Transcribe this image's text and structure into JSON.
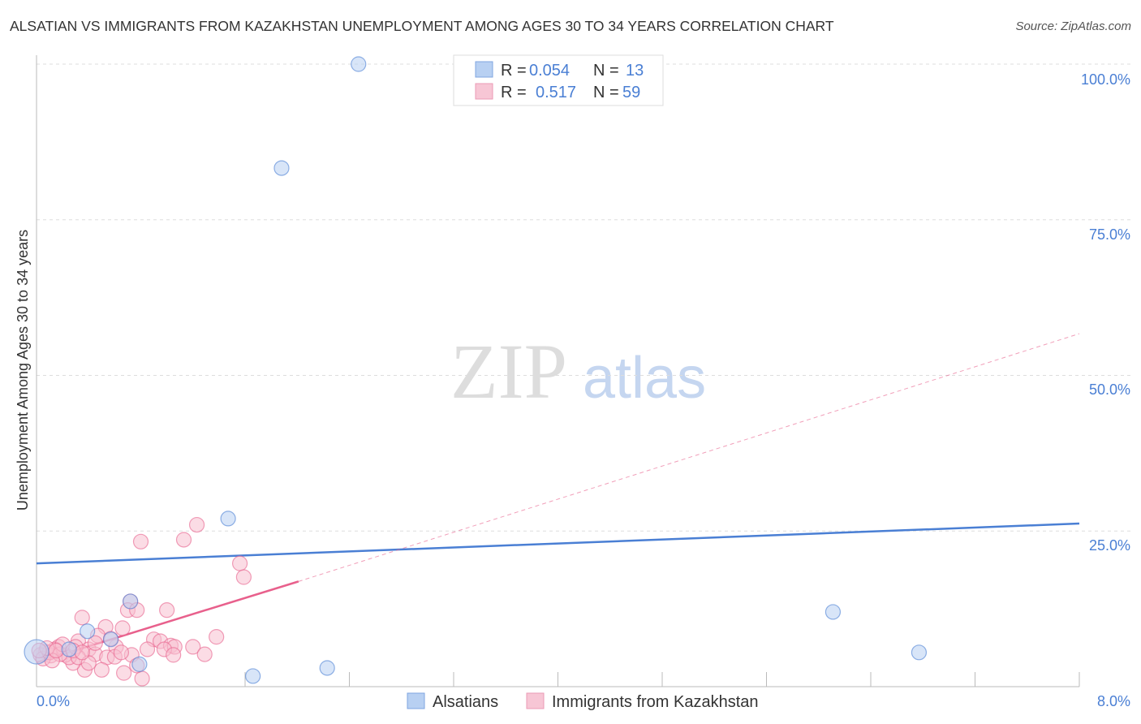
{
  "title": "ALSATIAN VS IMMIGRANTS FROM KAZAKHSTAN UNEMPLOYMENT AMONG AGES 30 TO 34 YEARS CORRELATION CHART",
  "source": "Source: ZipAtlas.com",
  "watermark": "ZIPatlas",
  "chart_data": {
    "type": "scatter",
    "ylabel": "Unemployment Among Ages 30 to 34 years",
    "xlim": [
      0,
      8
    ],
    "ylim": [
      0,
      100
    ],
    "x_tick_labels": [
      "0.0%",
      "8.0%"
    ],
    "y_tick_labels": [
      "100.0%",
      "75.0%",
      "50.0%",
      "25.0%"
    ],
    "y_ticks": [
      100,
      75,
      50,
      25
    ],
    "grid": true,
    "legend_placement": "top-center",
    "stats": [
      {
        "r_label": "R = ",
        "r": "0.054",
        "n_label": "N = ",
        "n": "13"
      },
      {
        "r_label": "R = ",
        "r": "0.517",
        "n_label": "N = ",
        "n": "59"
      }
    ],
    "series": [
      {
        "name": "Alsatians",
        "color": "#4a7fd4",
        "fill": "#b8d0f2",
        "trend": {
          "x": [
            0,
            8
          ],
          "y": [
            19.8,
            26.2
          ]
        },
        "points": [
          [
            2.47,
            100
          ],
          [
            1.88,
            83.3
          ],
          [
            1.47,
            27
          ],
          [
            0.39,
            8.9
          ],
          [
            0.72,
            13.7
          ],
          [
            0.79,
            3.6
          ],
          [
            1.66,
            1.7
          ],
          [
            2.23,
            3.0
          ],
          [
            6.11,
            12.0
          ],
          [
            6.77,
            5.5
          ],
          [
            0,
            5.6
          ],
          [
            0.57,
            7.6
          ],
          [
            0.25,
            6.0
          ]
        ]
      },
      {
        "name": "Immigrants from Kazakhstan",
        "color": "#e8608c",
        "fill": "#f7bfd0",
        "trend": {
          "x": [
            0,
            2.01
          ],
          "y": [
            3.9,
            16.9
          ]
        },
        "trend_ext": {
          "x": [
            2.01,
            8
          ],
          "y": [
            16.9,
            56.7
          ]
        },
        "points": [
          [
            1.23,
            26.0
          ],
          [
            1.13,
            23.6
          ],
          [
            0.8,
            23.3
          ],
          [
            1.56,
            19.8
          ],
          [
            1.59,
            17.6
          ],
          [
            0.72,
            13.7
          ],
          [
            0.7,
            12.3
          ],
          [
            0.77,
            12.3
          ],
          [
            1.0,
            12.3
          ],
          [
            0.35,
            11.1
          ],
          [
            0.66,
            9.4
          ],
          [
            0.53,
            9.6
          ],
          [
            1.38,
            8.0
          ],
          [
            0.9,
            7.6
          ],
          [
            0.95,
            7.3
          ],
          [
            1.03,
            6.6
          ],
          [
            1.06,
            6.4
          ],
          [
            1.2,
            6.4
          ],
          [
            1.29,
            5.2
          ],
          [
            0.98,
            6.0
          ],
          [
            1.05,
            5.1
          ],
          [
            0.73,
            5.1
          ],
          [
            0.61,
            6.4
          ],
          [
            0.47,
            8.2
          ],
          [
            0.32,
            7.3
          ],
          [
            0.4,
            6.0
          ],
          [
            0.45,
            5.2
          ],
          [
            0.54,
            4.7
          ],
          [
            0.5,
            2.7
          ],
          [
            0.37,
            2.7
          ],
          [
            0.28,
            3.8
          ],
          [
            0.67,
            2.2
          ],
          [
            0.81,
            1.3
          ],
          [
            0.77,
            3.4
          ],
          [
            0.22,
            5.1
          ],
          [
            0.17,
            6.4
          ],
          [
            0.14,
            6.0
          ],
          [
            0.07,
            5.6
          ],
          [
            0.03,
            5.1
          ],
          [
            0.11,
            5.0
          ],
          [
            0.25,
            4.7
          ],
          [
            0.32,
            4.7
          ],
          [
            0.4,
            3.8
          ],
          [
            0.3,
            6.4
          ],
          [
            0.57,
            7.7
          ],
          [
            0.05,
            4.5
          ],
          [
            0.1,
            5.5
          ],
          [
            0.18,
            5.2
          ],
          [
            0.12,
            4.2
          ],
          [
            0.2,
            6.8
          ],
          [
            0.08,
            6.2
          ],
          [
            0.28,
            5.8
          ],
          [
            0.35,
            5.5
          ],
          [
            0.6,
            4.8
          ],
          [
            0.45,
            7.0
          ],
          [
            0.15,
            5.8
          ],
          [
            0.02,
            5.8
          ],
          [
            0.65,
            5.5
          ],
          [
            0.85,
            6.0
          ]
        ]
      }
    ]
  }
}
